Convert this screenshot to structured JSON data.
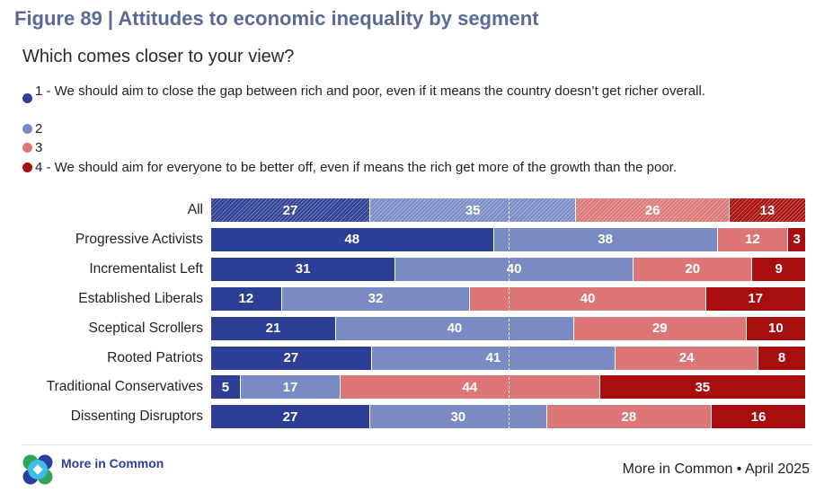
{
  "title": "Figure 89 | Attitudes to economic inequality by segment",
  "subtitle": "Which comes closer to your view?",
  "logo_text": "More in Common",
  "source": "More in Common • April 2025",
  "chart_data": {
    "type": "bar",
    "orientation": "horizontal-stacked-100",
    "title": "Figure 89 | Attitudes to economic inequality by segment",
    "legend": [
      {
        "name": "1 - We should aim to close the gap between rich and poor, even if it means the country doesn’t get richer overall.",
        "color": "#2d3e96"
      },
      {
        "name": "2",
        "color": "#7a8bc4"
      },
      {
        "name": "3",
        "color": "#dc7677"
      },
      {
        "name": "4 - We should aim for everyone to be better off, even if means the rich get more of the growth than the poor.",
        "color": "#a80e0e"
      }
    ],
    "categories": [
      "All",
      "Progressive Activists",
      "Incrementalist Left",
      "Established Liberals",
      "Sceptical Scrollers",
      "Rooted Patriots",
      "Traditional Conservatives",
      "Dissenting Disruptors"
    ],
    "series": [
      {
        "name": "1",
        "values": [
          27,
          48,
          31,
          12,
          21,
          27,
          5,
          27
        ]
      },
      {
        "name": "2",
        "values": [
          35,
          38,
          40,
          32,
          40,
          41,
          17,
          30
        ]
      },
      {
        "name": "3",
        "values": [
          26,
          12,
          20,
          40,
          29,
          24,
          44,
          28
        ]
      },
      {
        "name": "4",
        "values": [
          13,
          3,
          9,
          17,
          10,
          8,
          35,
          16
        ]
      }
    ],
    "reference_line": 50,
    "xlim": [
      0,
      100
    ]
  }
}
